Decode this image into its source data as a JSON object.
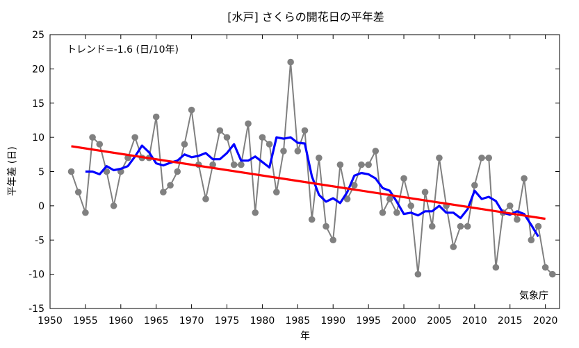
{
  "chart_data": {
    "type": "line",
    "title": "[水戸] さくらの開花日の平年差",
    "xlabel": "年",
    "ylabel": "平年差 (日)",
    "xlim": [
      1950,
      2022
    ],
    "ylim": [
      -15,
      25
    ],
    "x_ticks": [
      1950,
      1955,
      1960,
      1965,
      1970,
      1975,
      1980,
      1985,
      1990,
      1995,
      2000,
      2005,
      2010,
      2015,
      2020
    ],
    "y_ticks": [
      -15,
      -10,
      -5,
      0,
      5,
      10,
      15,
      20,
      25
    ],
    "grid": false,
    "trend_label": "トレンド=-1.6 (日/10年)",
    "credit": "気象庁",
    "colors": {
      "annual": "#808080",
      "moving_average": "#0000ff",
      "trend": "#ff0000"
    },
    "series": [
      {
        "style": "gray-line-with-dots",
        "x": [
          1953,
          1954,
          1955,
          1956,
          1957,
          1958,
          1959,
          1960,
          1961,
          1962,
          1963,
          1964,
          1965,
          1966,
          1967,
          1968,
          1969,
          1970,
          1971,
          1972,
          1973,
          1974,
          1975,
          1976,
          1977,
          1978,
          1979,
          1980,
          1981,
          1982,
          1983,
          1984,
          1985,
          1986,
          1987,
          1988,
          1989,
          1990,
          1991,
          1992,
          1993,
          1994,
          1995,
          1996,
          1997,
          1998,
          1999,
          2000,
          2001,
          2002,
          2003,
          2004,
          2005,
          2006,
          2007,
          2008,
          2009,
          2010,
          2011,
          2012,
          2013,
          2014,
          2015,
          2016,
          2017,
          2018,
          2019,
          2020,
          2021
        ],
        "values": [
          5,
          2,
          -1,
          10,
          9,
          5,
          0,
          5,
          7,
          10,
          7,
          7,
          13,
          2,
          3,
          5,
          9,
          14,
          6,
          1,
          6,
          11,
          10,
          6,
          6,
          12,
          -1,
          10,
          9,
          2,
          8,
          21,
          8,
          11,
          -2,
          7,
          -3,
          -5,
          6,
          1,
          3,
          6,
          6,
          8,
          -1,
          1,
          -1,
          4,
          0,
          -10,
          2,
          -3,
          7,
          0,
          -6,
          -3,
          -3,
          3,
          7,
          7,
          -9,
          -1,
          0,
          -2,
          4,
          -5,
          -3,
          -9,
          -10
        ]
      },
      {
        "style": "blue-moving-average",
        "x": [
          1955,
          1956,
          1957,
          1958,
          1959,
          1960,
          1961,
          1962,
          1963,
          1964,
          1965,
          1966,
          1967,
          1968,
          1969,
          1970,
          1971,
          1972,
          1973,
          1974,
          1975,
          1976,
          1977,
          1978,
          1979,
          1980,
          1981,
          1982,
          1983,
          1984,
          1985,
          1986,
          1987,
          1988,
          1989,
          1990,
          1991,
          1992,
          1993,
          1994,
          1995,
          1996,
          1997,
          1998,
          1999,
          2000,
          2001,
          2002,
          2003,
          2004,
          2005,
          2006,
          2007,
          2008,
          2009,
          2010,
          2011,
          2012,
          2013,
          2014,
          2015,
          2016,
          2017,
          2018,
          2019
        ],
        "values": [
          5.0,
          5.0,
          4.6,
          5.8,
          5.2,
          5.4,
          5.8,
          7.2,
          8.8,
          7.8,
          6.2,
          5.9,
          6.3,
          6.6,
          7.5,
          7.1,
          7.3,
          7.7,
          6.8,
          6.8,
          7.7,
          9.0,
          6.6,
          6.6,
          7.2,
          6.4,
          5.6,
          10.0,
          9.8,
          10.0,
          9.2,
          9.1,
          4.3,
          1.6,
          0.6,
          1.1,
          0.4,
          2.0,
          4.4,
          4.8,
          4.6,
          4.0,
          2.6,
          2.2,
          0.6,
          -1.2,
          -1.0,
          -1.4,
          -0.8,
          -0.8,
          0.0,
          -1.0,
          -1.0,
          -1.8,
          -0.5,
          2.2,
          1.0,
          1.3,
          0.7,
          -1.0,
          -1.3,
          -0.8,
          -1.2,
          -2.8,
          -4.5
        ]
      },
      {
        "style": "red-trend-line",
        "x": [
          1953,
          2020
        ],
        "values": [
          8.7,
          -1.9
        ]
      }
    ]
  }
}
